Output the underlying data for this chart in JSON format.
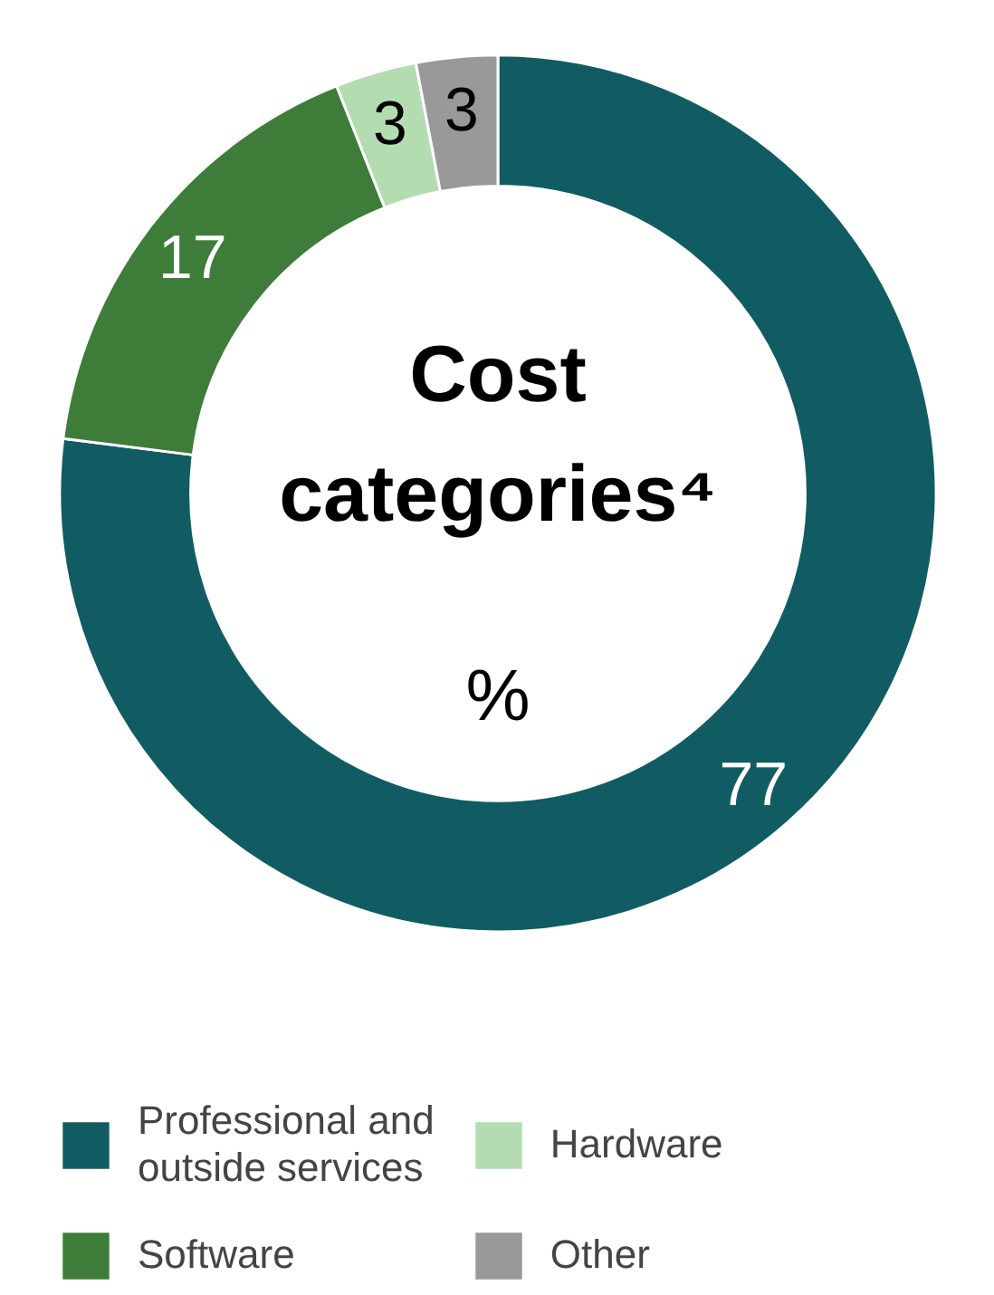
{
  "chart_data": {
    "type": "donut",
    "title": "Cost categories⁴",
    "subtitle": "%",
    "categories": [
      "Professional and outside services",
      "Software",
      "Hardware",
      "Other"
    ],
    "values": [
      77,
      17,
      3,
      3
    ],
    "colors": [
      "#115c63",
      "#3e7d39",
      "#b3ddb1",
      "#999999"
    ],
    "data_labels": true,
    "legend": "bottom"
  }
}
